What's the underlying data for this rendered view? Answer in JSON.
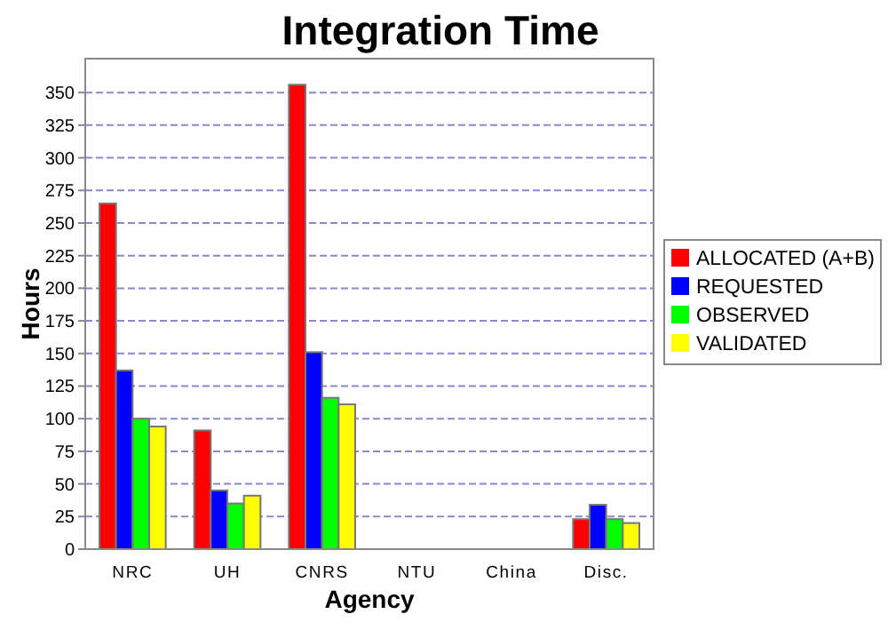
{
  "chart_data": {
    "type": "bar",
    "title": "Integration Time",
    "xlabel": "Agency",
    "ylabel": "Hours",
    "categories": [
      "NRC",
      "UH",
      "CNRS",
      "NTU",
      "China",
      "Disc."
    ],
    "series": [
      {
        "name": "ALLOCATED (A+B)",
        "color": "#ff0000",
        "values": [
          265,
          91,
          356,
          0,
          0,
          23
        ]
      },
      {
        "name": "REQUESTED",
        "color": "#0000ff",
        "values": [
          137,
          45,
          151,
          0,
          0,
          34
        ]
      },
      {
        "name": "OBSERVED",
        "color": "#00ff00",
        "values": [
          100,
          35,
          116,
          0,
          0,
          23
        ]
      },
      {
        "name": "VALIDATED",
        "color": "#ffff00",
        "values": [
          94,
          41,
          111,
          0,
          0,
          20
        ]
      }
    ],
    "ylim": [
      0,
      376
    ],
    "yticks": [
      0,
      25,
      50,
      75,
      100,
      125,
      150,
      175,
      200,
      225,
      250,
      275,
      300,
      325,
      350
    ],
    "grid": "y",
    "legend": "right"
  }
}
